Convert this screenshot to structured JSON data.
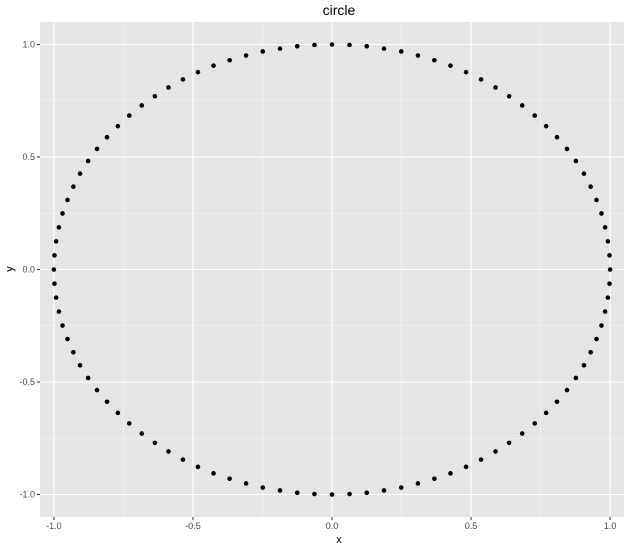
{
  "chart_data": {
    "type": "scatter",
    "title": "circle",
    "xlabel": "x",
    "ylabel": "y",
    "xlim": [
      -1.05,
      1.05
    ],
    "ylim": [
      -1.1,
      1.1
    ],
    "x_ticks": [
      -1.0,
      -0.5,
      0.0,
      0.5,
      1.0
    ],
    "x_tick_labels": [
      "-1.0",
      "-0.5",
      "0.0",
      "0.5",
      "1.0"
    ],
    "y_ticks": [
      -1.0,
      -0.5,
      0.0,
      0.5,
      1.0
    ],
    "y_tick_labels": [
      "-1.0",
      "-0.5",
      "0.0",
      "0.5",
      "1.0"
    ],
    "grid": true,
    "legend": "none",
    "colors": {
      "panel": "#e5e5e5",
      "grid": "#ffffff",
      "point": "#000000"
    },
    "series": [
      {
        "points_x": [
          1.0,
          0.998,
          0.992,
          0.982,
          0.969,
          0.951,
          0.93,
          0.906,
          0.877,
          0.845,
          0.809,
          0.77,
          0.729,
          0.684,
          0.637,
          0.588,
          0.536,
          0.482,
          0.426,
          0.368,
          0.309,
          0.249,
          0.187,
          0.125,
          0.063,
          0.0,
          -0.063,
          -0.125,
          -0.187,
          -0.249,
          -0.309,
          -0.368,
          -0.426,
          -0.482,
          -0.536,
          -0.588,
          -0.637,
          -0.684,
          -0.729,
          -0.77,
          -0.809,
          -0.845,
          -0.877,
          -0.906,
          -0.93,
          -0.951,
          -0.969,
          -0.982,
          -0.992,
          -0.998,
          -1.0,
          -0.998,
          -0.992,
          -0.982,
          -0.969,
          -0.951,
          -0.93,
          -0.906,
          -0.877,
          -0.845,
          -0.809,
          -0.77,
          -0.729,
          -0.684,
          -0.637,
          -0.588,
          -0.536,
          -0.482,
          -0.426,
          -0.368,
          -0.309,
          -0.249,
          -0.187,
          -0.125,
          -0.063,
          0.0,
          0.063,
          0.125,
          0.187,
          0.249,
          0.309,
          0.368,
          0.426,
          0.482,
          0.536,
          0.588,
          0.637,
          0.684,
          0.729,
          0.77,
          0.809,
          0.845,
          0.877,
          0.906,
          0.93,
          0.951,
          0.969,
          0.982,
          0.992,
          0.998
        ],
        "points_y": [
          0.0,
          0.063,
          0.125,
          0.187,
          0.249,
          0.309,
          0.368,
          0.426,
          0.482,
          0.536,
          0.588,
          0.637,
          0.684,
          0.729,
          0.77,
          0.809,
          0.845,
          0.877,
          0.906,
          0.93,
          0.951,
          0.969,
          0.982,
          0.992,
          0.998,
          1.0,
          0.998,
          0.992,
          0.982,
          0.969,
          0.951,
          0.93,
          0.906,
          0.877,
          0.845,
          0.809,
          0.77,
          0.729,
          0.684,
          0.637,
          0.588,
          0.536,
          0.482,
          0.426,
          0.368,
          0.309,
          0.249,
          0.187,
          0.125,
          0.063,
          0.0,
          -0.063,
          -0.125,
          -0.187,
          -0.249,
          -0.309,
          -0.368,
          -0.426,
          -0.482,
          -0.536,
          -0.588,
          -0.637,
          -0.684,
          -0.729,
          -0.77,
          -0.809,
          -0.845,
          -0.877,
          -0.906,
          -0.93,
          -0.951,
          -0.969,
          -0.982,
          -0.992,
          -0.998,
          -1.0,
          -0.998,
          -0.992,
          -0.982,
          -0.969,
          -0.951,
          -0.93,
          -0.906,
          -0.877,
          -0.845,
          -0.809,
          -0.77,
          -0.729,
          -0.684,
          -0.637,
          -0.588,
          -0.536,
          -0.482,
          -0.426,
          -0.368,
          -0.309,
          -0.249,
          -0.187,
          -0.125,
          -0.063
        ]
      }
    ]
  }
}
